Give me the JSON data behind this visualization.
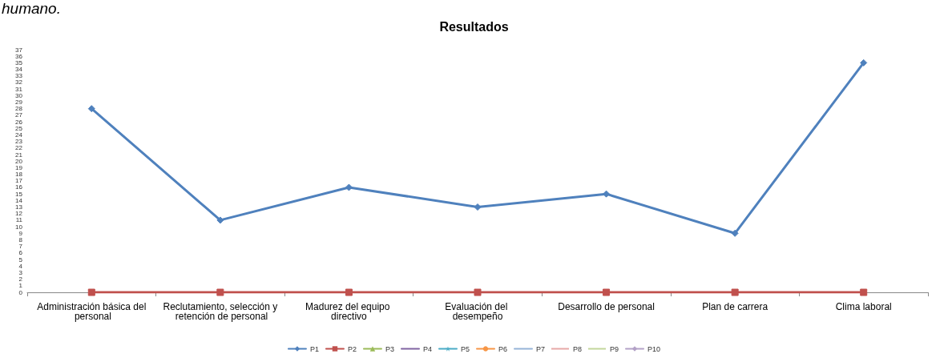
{
  "chart_data": {
    "type": "line",
    "title": "Resultados",
    "annotations": [
      "humano."
    ],
    "categories": [
      "Administración básica del personal",
      "Reclutamiento, selección y retención de personal",
      "Madurez del equipo directivo",
      "Evaluación del desempeño",
      "Desarrollo de personal",
      "Plan de carrera",
      "Clima laboral"
    ],
    "series": [
      {
        "name": "P1",
        "color": "#4f81bd",
        "marker": "diamond",
        "values": [
          28,
          11,
          16,
          13,
          15,
          9,
          35
        ]
      },
      {
        "name": "P2",
        "color": "#c0504d",
        "marker": "square",
        "values": [
          0,
          0,
          0,
          0,
          0,
          0,
          0
        ]
      },
      {
        "name": "P3",
        "color": "#9bbb59",
        "marker": "triangle",
        "values": [
          null,
          null,
          null,
          null,
          null,
          null,
          null
        ]
      },
      {
        "name": "P4",
        "color": "#8064a2",
        "marker": "cross",
        "values": [
          null,
          null,
          null,
          null,
          null,
          null,
          null
        ]
      },
      {
        "name": "P5",
        "color": "#4bacc6",
        "marker": "star",
        "values": [
          null,
          null,
          null,
          null,
          null,
          null,
          null
        ]
      },
      {
        "name": "P6",
        "color": "#f79646",
        "marker": "circle",
        "values": [
          null,
          null,
          null,
          null,
          null,
          null,
          null
        ]
      },
      {
        "name": "P7",
        "color": "#95b3d7",
        "marker": "cross",
        "values": [
          null,
          null,
          null,
          null,
          null,
          null,
          null
        ]
      },
      {
        "name": "P8",
        "color": "#e6a8a6",
        "marker": "none",
        "values": [
          null,
          null,
          null,
          null,
          null,
          null,
          null
        ]
      },
      {
        "name": "P9",
        "color": "#c3d69b",
        "marker": "none",
        "values": [
          null,
          null,
          null,
          null,
          null,
          null,
          null
        ]
      },
      {
        "name": "P10",
        "color": "#b3a2c7",
        "marker": "diamond",
        "values": [
          null,
          null,
          null,
          null,
          null,
          null,
          null
        ]
      }
    ],
    "ylim": [
      0,
      37
    ],
    "yticks": [
      0,
      1,
      2,
      3,
      4,
      5,
      6,
      7,
      8,
      9,
      10,
      11,
      12,
      13,
      14,
      15,
      16,
      17,
      18,
      19,
      20,
      21,
      22,
      23,
      24,
      25,
      26,
      27,
      28,
      29,
      30,
      31,
      32,
      33,
      34,
      35,
      36,
      37
    ],
    "grid": false,
    "legend": "bottom",
    "line_style": "solid"
  }
}
